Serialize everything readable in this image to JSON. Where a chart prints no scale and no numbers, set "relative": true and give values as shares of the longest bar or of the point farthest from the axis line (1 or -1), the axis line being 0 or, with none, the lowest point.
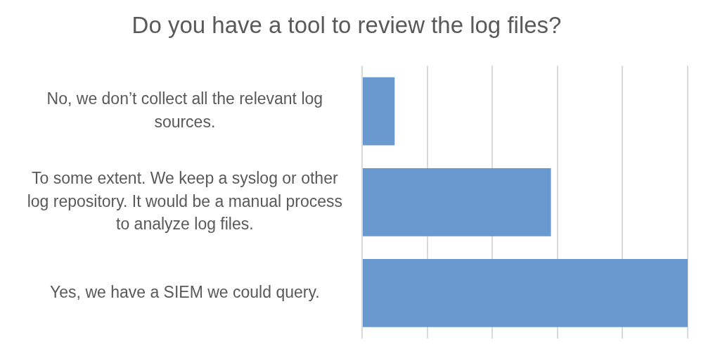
{
  "chart_data": {
    "type": "bar",
    "orientation": "horizontal",
    "title": "Do you have a tool to review the log files?",
    "categories": [
      "No, we don’t collect all the relevant log sources.",
      "To some extent. We keep a syslog or other log repository. It would be a manual process to analyze log files.",
      "Yes, we have a SIEM we could query."
    ],
    "values": [
      0.1,
      0.58,
      1
    ],
    "color": "#6a99cf",
    "relative": true,
    "grid": "x"
  }
}
